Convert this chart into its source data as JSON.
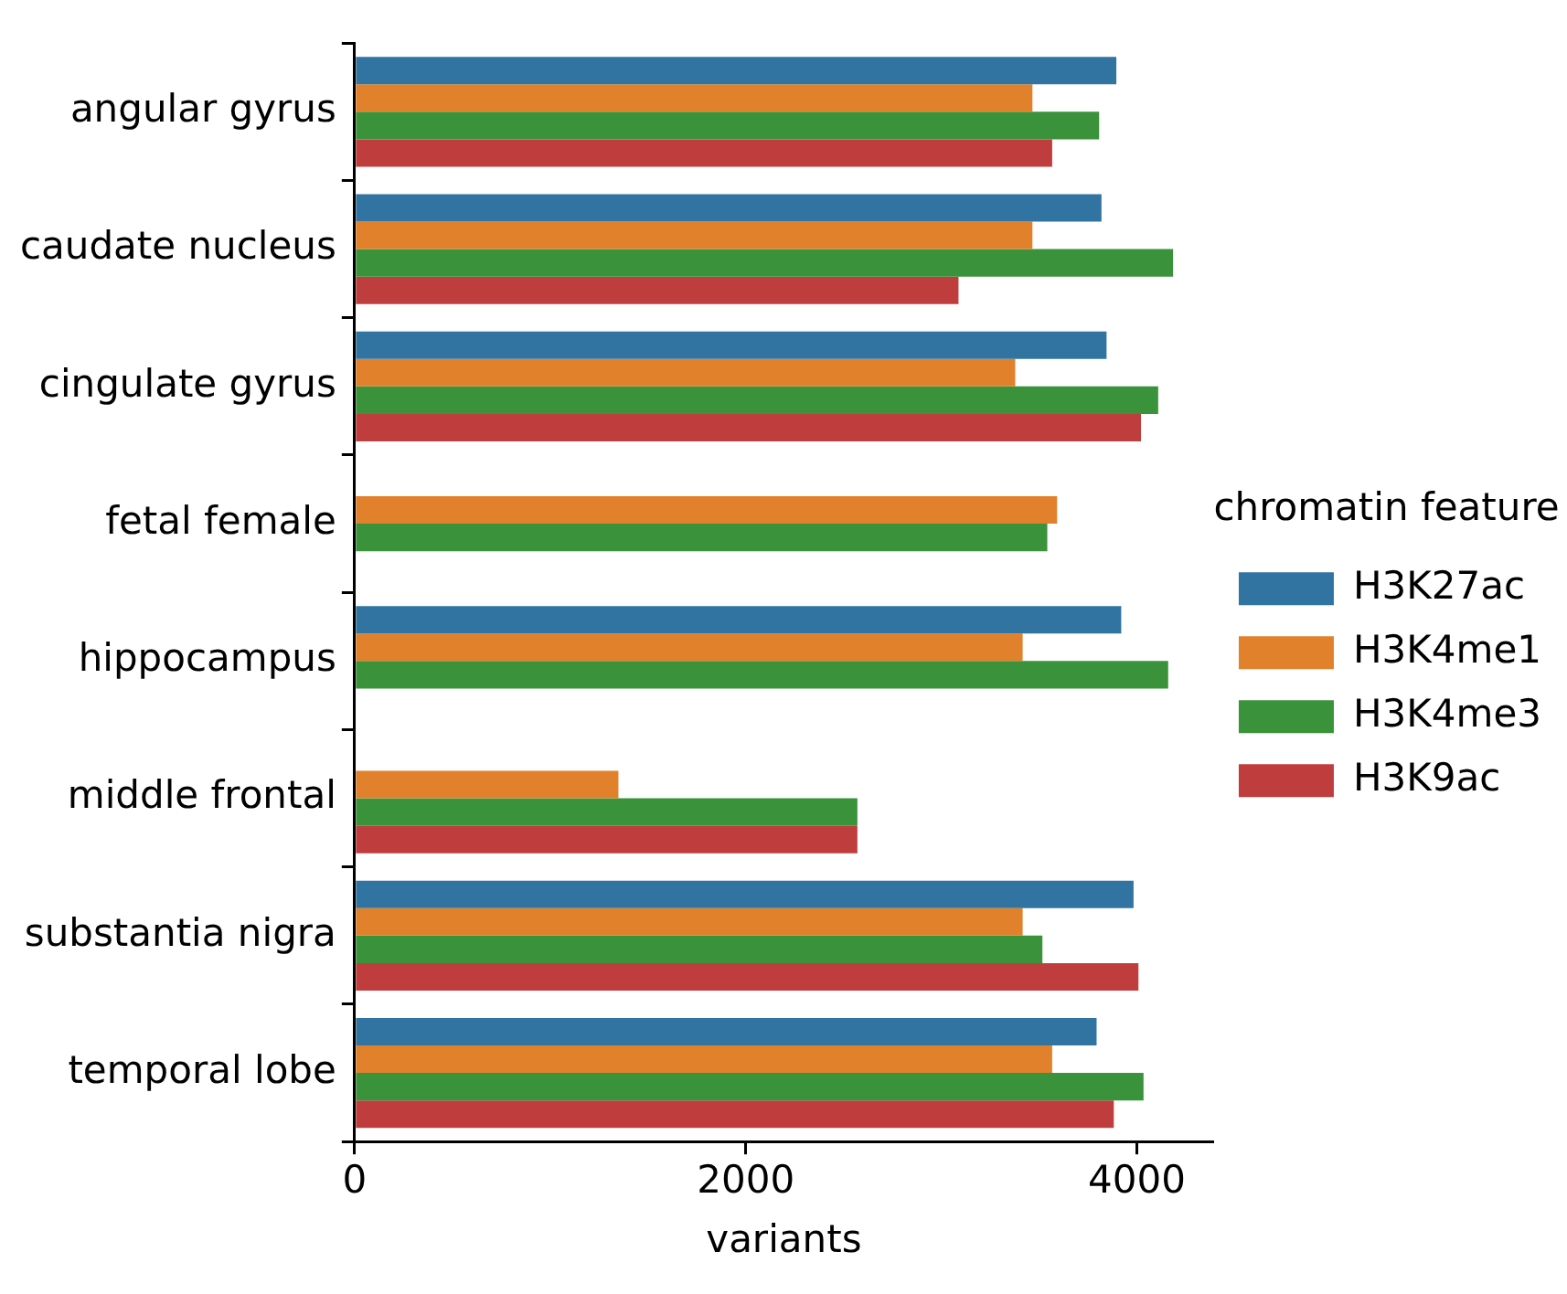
{
  "chart_data": {
    "type": "bar",
    "orientation": "horizontal",
    "xlabel": "variants",
    "legend_title": "chromatin feature",
    "categories": [
      "angular gyrus",
      "caudate nucleus",
      "cingulate gyrus",
      "fetal female",
      "hippocampus",
      "middle frontal",
      "substantia nigra",
      "temporal lobe"
    ],
    "series": [
      {
        "name": "H3K27ac",
        "color": "#3274a1",
        "values": [
          3895,
          3819,
          3845,
          null,
          3920,
          null,
          3983,
          3794
        ]
      },
      {
        "name": "H3K4me1",
        "color": "#e1812c",
        "values": [
          3466,
          3466,
          3378,
          3592,
          3416,
          1349,
          3416,
          3567
        ]
      },
      {
        "name": "H3K4me3",
        "color": "#3a923a",
        "values": [
          3807,
          4185,
          4109,
          3542,
          4160,
          2571,
          3517,
          4034
        ]
      },
      {
        "name": "H3K9ac",
        "color": "#c03d3e",
        "values": [
          3567,
          3088,
          4021,
          null,
          null,
          2571,
          4008,
          3882
        ]
      }
    ],
    "xlim": [
      0,
      4390
    ],
    "xticks": [
      0,
      2000,
      4000
    ],
    "grid": false,
    "legend": "right"
  }
}
